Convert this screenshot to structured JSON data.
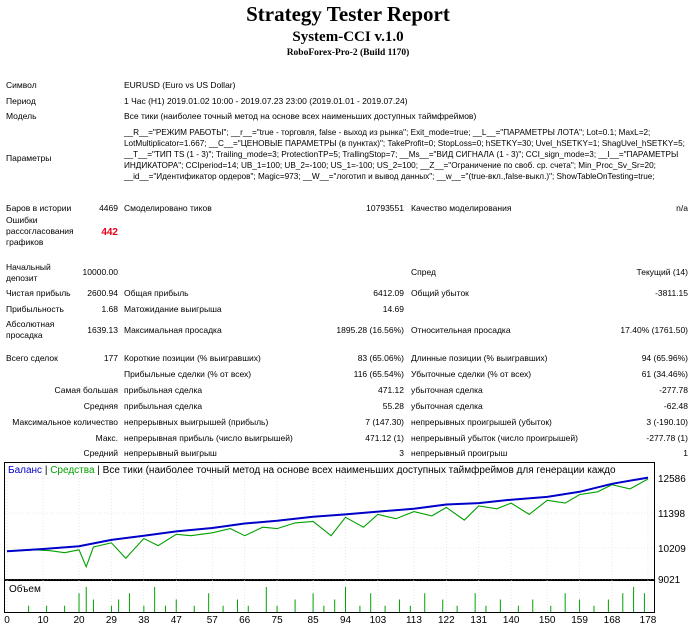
{
  "header": {
    "title": "Strategy Tester Report",
    "expert": "System-CCI v.1.0",
    "server": "RoboForex-Pro-2 (Build 1170)"
  },
  "info": {
    "symbol_label": "Символ",
    "symbol_value": "EURUSD (Euro vs US Dollar)",
    "period_label": "Период",
    "period_value": "1 Час (H1) 2019.01.02 10:00 - 2019.07.23 23:00 (2019.01.01 - 2019.07.24)",
    "model_label": "Модель",
    "model_value": "Все тики (наиболее точный метод на основе всех наименьших доступных таймфреймов)",
    "params_label": "Параметры",
    "params_value": "__R__=\"РЕЖИМ РАБОТЫ\"; __r__=\"true - торговля, false - выход из рынка\"; Exit_mode=true; __L__=\"ПАРАМЕТРЫ ЛОТА\"; Lot=0.1; MaxL=2; LotMultiplicator=1.667; __C__=\"ЦЕНОВЫЕ ПАРАМЕТРЫ (в пунктах)\"; TakeProfit=0; StopLoss=0; hSETKY=30; Uvel_hSETKY=1; ShagUvel_hSETKY=5; __T__=\"ТИП TS (1 - 3)\"; Trailing_mode=3; ProtectionTP=5; TrallingStop=7; __Ms__=\"ВИД СИГНАЛА (1 - 3)\"; CCI_sign_mode=3; __I__=\"ПАРАМЕТРЫ ИНДИКАТОРА\"; CCIperiod=14; UB_1=100; UB_2=-100; US_1=-100; US_2=100; __Z__=\"Ограничение по своб. ср. счета\"; Min_Proc_Sv_Sr=20; __id__=\"Идентификатор ордеров\"; Magic=973; __W__=\"логотип и вывод данных\"; __w__=\"(true-вкл.,false-выкл.)\"; ShowTableOnTesting=true;"
  },
  "stats": {
    "bars_label": "Баров в истории",
    "bars_value": "4469",
    "ticks_label": "Смоделировано тиков",
    "ticks_value": "10793551",
    "quality_label": "Качество моделирования",
    "quality_value": "n/a",
    "errors_label": "Ошибки рассогласования графиков",
    "errors_value": "442",
    "deposit_label": "Начальный депозит",
    "deposit_value": "10000.00",
    "spread_label": "Спред",
    "spread_value": "Текущий (14)",
    "net_label": "Чистая прибыль",
    "net_value": "2600.94",
    "gross_profit_label": "Общая прибыль",
    "gross_profit_value": "6412.09",
    "gross_loss_label": "Общий убыток",
    "gross_loss_value": "-3811.15",
    "pf_label": "Прибыльность",
    "pf_value": "1.68",
    "payoff_label": "Матожидание выигрыша",
    "payoff_value": "14.69",
    "abs_dd_label": "Абсолютная просадка",
    "abs_dd_value": "1639.13",
    "max_dd_label": "Максимальная просадка",
    "max_dd_value": "1895.28 (16.56%)",
    "rel_dd_label": "Относительная просадка",
    "rel_dd_value": "17.40% (1761.50)",
    "total_label": "Всего сделок",
    "total_value": "177",
    "short_label": "Короткие позиции (% выигравших)",
    "short_value": "83 (65.06%)",
    "long_label": "Длинные позиции (% выигравших)",
    "long_value": "94 (65.96%)",
    "profit_trades_label": "Прибыльные сделки (% от всех)",
    "profit_trades_value": "116 (65.54%)",
    "loss_trades_label": "Убыточные сделки (% от всех)",
    "loss_trades_value": "61 (34.46%)",
    "largest_label": "Самая большая",
    "largest_profit_label": "прибыльная сделка",
    "largest_profit_value": "471.12",
    "largest_loss_label": "убыточная сделка",
    "largest_loss_value": "-277.78",
    "average_label": "Средняя",
    "average_profit_label": "прибыльная сделка",
    "average_profit_value": "55.28",
    "average_loss_label": "убыточная сделка",
    "average_loss_value": "-62.48",
    "maxcount_label": "Максимальное количество",
    "maxcount_wins_label": "непрерывных выигрышей (прибыль)",
    "maxcount_wins_value": "7 (147.30)",
    "maxcount_losses_label": "непрерывных проигрышей (убыток)",
    "maxcount_losses_value": "3 (-190.10)",
    "maximal_label": "Макс.",
    "maximal_profit_label": "непрерывная прибыль (число выигрышей)",
    "maximal_profit_value": "471.12 (1)",
    "maximal_loss_label": "непрерывный убыток (число проигрышей)",
    "maximal_loss_value": "-277.78 (1)",
    "avgcons_label": "Средний",
    "avgcons_wins_label": "непрерывный выигрыш",
    "avgcons_wins_value": "3",
    "avgcons_losses_label": "непрерывный проигрыш",
    "avgcons_losses_value": "1"
  },
  "chart": {
    "legend_balance": "Баланс",
    "legend_sep1": " | ",
    "legend_equity": "Средства",
    "legend_sep2": " | ",
    "legend_rest": "Все тики (наиболее точный метод на основе всех наименьших доступных таймфреймов для генерации каждо",
    "volume_label": "Объем",
    "colors": {
      "balance": "#0000c8",
      "equity": "#00a000",
      "volume": "#00a000"
    }
  },
  "chart_data": {
    "type": "line",
    "y_ticks": [
      "12586",
      "11398",
      "10209",
      "9021"
    ],
    "x_ticks": [
      "0",
      "10",
      "20",
      "29",
      "38",
      "47",
      "57",
      "66",
      "75",
      "85",
      "94",
      "103",
      "113",
      "122",
      "131",
      "140",
      "150",
      "159",
      "168",
      "178"
    ],
    "ylim": [
      9021,
      12586
    ],
    "series": [
      {
        "name": "Баланс",
        "x": [
          0,
          10,
          20,
          29,
          38,
          47,
          57,
          66,
          75,
          85,
          94,
          103,
          113,
          122,
          131,
          140,
          150,
          159,
          168,
          178
        ],
        "values": [
          10000,
          10080,
          10180,
          10400,
          10550,
          10700,
          10820,
          10980,
          11080,
          11220,
          11300,
          11400,
          11500,
          11650,
          11700,
          11820,
          11920,
          12100,
          12380,
          12600
        ]
      },
      {
        "name": "Средства",
        "x": [
          0,
          8,
          12,
          16,
          20,
          22,
          24,
          29,
          33,
          38,
          42,
          47,
          51,
          57,
          62,
          66,
          71,
          75,
          80,
          85,
          90,
          94,
          99,
          103,
          108,
          113,
          118,
          122,
          127,
          131,
          136,
          140,
          145,
          150,
          155,
          159,
          164,
          168,
          173,
          178
        ],
        "values": [
          10000,
          10050,
          10020,
          9950,
          10050,
          9450,
          10150,
          10300,
          9750,
          10450,
          10200,
          10600,
          10550,
          10650,
          10800,
          10550,
          10850,
          10800,
          11000,
          11050,
          10550,
          11200,
          10850,
          11300,
          11150,
          11400,
          11250,
          11550,
          11100,
          11600,
          11500,
          11700,
          11300,
          11800,
          11700,
          12000,
          12100,
          12350,
          12200,
          12550
        ]
      }
    ],
    "volume": {
      "x": [
        6,
        11,
        16,
        20,
        22,
        24,
        29,
        31,
        34,
        38,
        41,
        44,
        47,
        52,
        56,
        60,
        64,
        67,
        72,
        75,
        80,
        85,
        88,
        91,
        94,
        98,
        101,
        105,
        109,
        112,
        116,
        121,
        125,
        130,
        133,
        137,
        142,
        146,
        151,
        155,
        159,
        163,
        167,
        171,
        174,
        177
      ],
      "values": [
        1,
        1,
        1,
        3,
        4,
        2,
        1,
        2,
        3,
        1,
        4,
        1,
        2,
        1,
        3,
        1,
        2,
        1,
        4,
        1,
        2,
        3,
        1,
        2,
        4,
        1,
        3,
        1,
        2,
        1,
        3,
        2,
        1,
        3,
        1,
        2,
        1,
        2,
        1,
        3,
        2,
        1,
        2,
        3,
        4,
        3
      ]
    }
  }
}
